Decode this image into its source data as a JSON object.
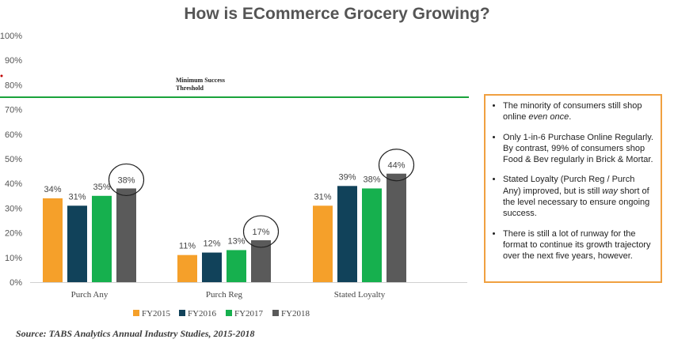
{
  "title": "How is ECommerce Grocery Growing?",
  "threshold": {
    "value": 75,
    "line1": "Minimum Success",
    "line2": "Threshold",
    "color": "#1aa33b"
  },
  "notes": [
    [
      "The minority of consumers still shop online ",
      "even once",
      "."
    ],
    [
      "Only 1-in-6 Purchase Online Regularly. By contrast, 99% of consumers shop Food & Bev regularly in Brick & Mortar.",
      "",
      ""
    ],
    [
      "Stated Loyalty (Purch Reg / Purch Any) improved, but is still ",
      "way",
      " short of the level necessary to ensure ongoing success."
    ],
    [
      "There is still a lot of runway for the format to continue its growth trajectory over the next five years, however.",
      "",
      ""
    ]
  ],
  "source": "Source: TABS Analytics Annual Industry Studies, 2015-2018",
  "chart_data": {
    "type": "bar",
    "title": "How is ECommerce Grocery Growing?",
    "categories": [
      "Purch Any",
      "Purch Reg",
      "Stated Loyalty"
    ],
    "series": [
      {
        "name": "FY2015",
        "values": [
          34,
          11,
          31
        ],
        "color": "#f5a02a"
      },
      {
        "name": "FY2016",
        "values": [
          31,
          12,
          39
        ],
        "color": "#11425a"
      },
      {
        "name": "FY2017",
        "values": [
          35,
          13,
          38
        ],
        "color": "#16b04e"
      },
      {
        "name": "FY2018",
        "values": [
          38,
          17,
          44
        ],
        "color": "#5a5a5a"
      }
    ],
    "ylim": [
      0,
      100
    ],
    "yticks": [
      "0%",
      "10%",
      "20%",
      "30%",
      "40%",
      "50%",
      "60%",
      "70%",
      "80%",
      "90%",
      "100%"
    ],
    "value_labels": [
      [
        "34%",
        "31%",
        "35%",
        "38%"
      ],
      [
        "11%",
        "12%",
        "13%",
        "17%"
      ],
      [
        "31%",
        "39%",
        "38%",
        "44%"
      ]
    ],
    "legend_position": "bottom",
    "grid": false
  }
}
